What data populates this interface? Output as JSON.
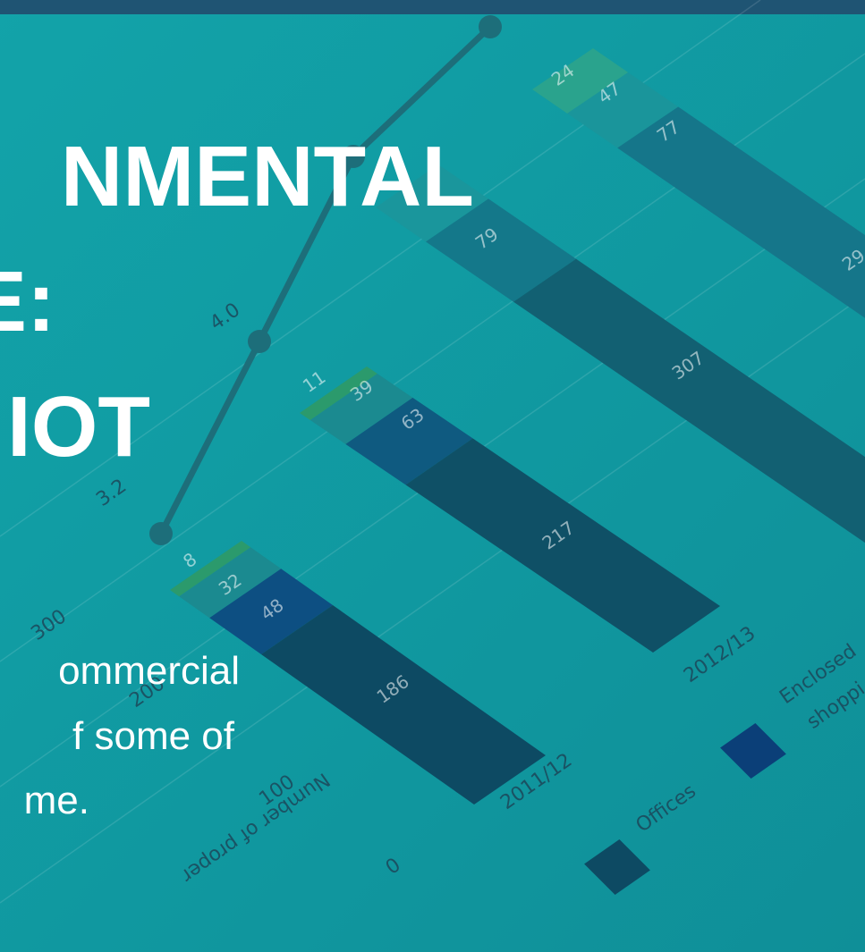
{
  "headline": {
    "lines": [
      "NMENTAL",
      "E:",
      "IOT"
    ]
  },
  "body": {
    "lines": [
      "ommercial",
      "f some of",
      "me."
    ]
  },
  "background_chart": {
    "line_labels": [
      "3.2",
      "4.0"
    ],
    "y_axis": {
      "label": "Number of proper",
      "ticks": [
        "0",
        "100",
        "200",
        "300"
      ]
    },
    "bars": [
      {
        "category": "2011/12",
        "segments": [
          "8",
          "32",
          "48",
          "186"
        ]
      },
      {
        "category": "2012/13",
        "segments": [
          "11",
          "39",
          "63",
          "217"
        ]
      },
      {
        "segments": [
          "79",
          "307"
        ]
      },
      {
        "segments": [
          "24",
          "47",
          "77",
          "29"
        ]
      }
    ],
    "legend": [
      "Offices",
      "Enclosed",
      "shoppi"
    ]
  }
}
